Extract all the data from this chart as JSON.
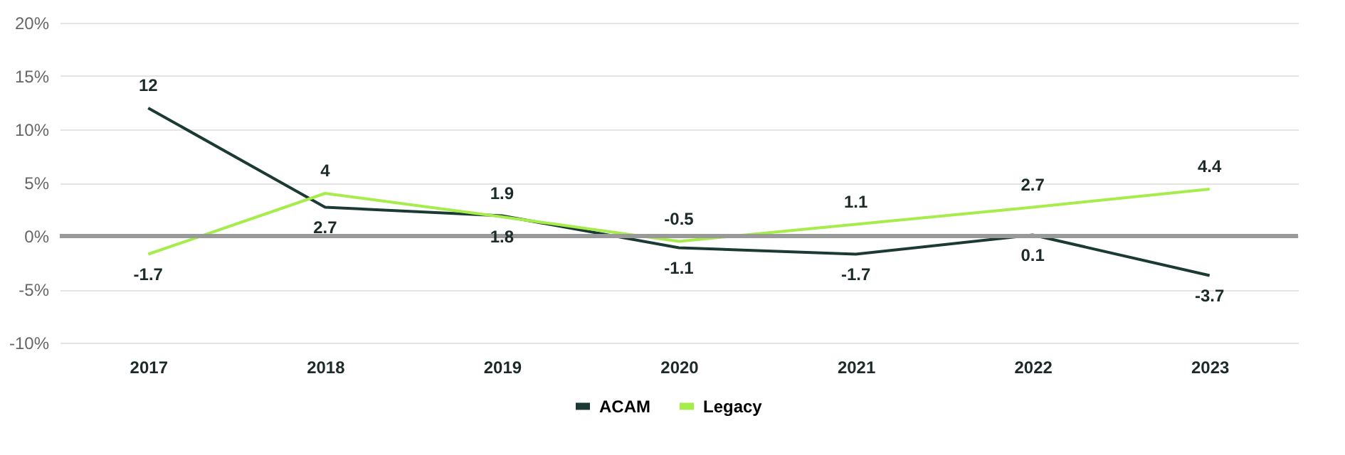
{
  "chart_data": {
    "type": "line",
    "categories": [
      "2017",
      "2018",
      "2019",
      "2020",
      "2021",
      "2022",
      "2023"
    ],
    "series": [
      {
        "name": "ACAM",
        "color": "#1c3a34",
        "values": [
          12,
          2.7,
          1.9,
          -1.1,
          -1.7,
          0.1,
          -3.7
        ]
      },
      {
        "name": "Legacy",
        "color": "#a6ec4a",
        "values": [
          -1.7,
          4,
          1.8,
          -0.5,
          1.1,
          2.7,
          4.4
        ]
      }
    ],
    "ylim": [
      -10,
      20
    ],
    "yticks": [
      {
        "value": -10,
        "label": "-10%"
      },
      {
        "value": -5,
        "label": "-5%"
      },
      {
        "value": 0,
        "label": "0%"
      },
      {
        "value": 5,
        "label": "5%"
      },
      {
        "value": 10,
        "label": "10%"
      },
      {
        "value": 15,
        "label": "15%"
      },
      {
        "value": 20,
        "label": "20%"
      }
    ],
    "ref_lines": [
      {
        "axis": "y",
        "value": 0,
        "color": "#999999"
      }
    ],
    "data_labels": true,
    "grid": "y",
    "legend": "bottom",
    "marker": "none",
    "line_style": "solid"
  }
}
